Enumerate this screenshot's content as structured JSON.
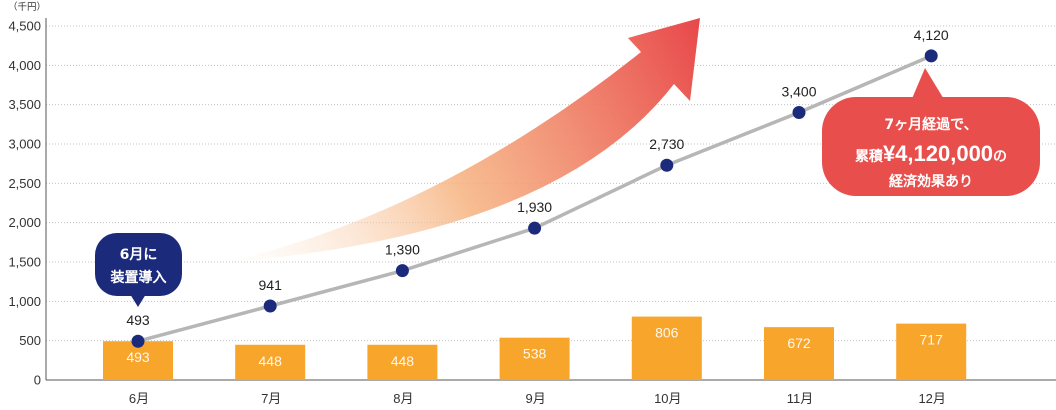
{
  "chart_data": {
    "type": "bar",
    "unit_label": "（千円）",
    "categories": [
      "6月",
      "7月",
      "8月",
      "9月",
      "10月",
      "11月",
      "12月"
    ],
    "ylim": [
      0,
      4500
    ],
    "yticks": [
      0,
      500,
      1000,
      1500,
      2000,
      2500,
      3000,
      3500,
      4000,
      4500
    ],
    "ytick_labels": [
      "0",
      "500",
      "1,000",
      "1,500",
      "2,000",
      "2,500",
      "3,000",
      "3,500",
      "4,000",
      "4,500"
    ],
    "grid": true,
    "series": [
      {
        "type": "bar",
        "values": [
          493,
          448,
          448,
          538,
          806,
          672,
          717
        ],
        "labels": [
          "493",
          "448",
          "448",
          "538",
          "806",
          "672",
          "717"
        ],
        "color": "#F8A52C",
        "label_color": "#FFFFFF"
      },
      {
        "type": "line",
        "values": [
          493,
          941,
          1390,
          1930,
          2730,
          3400,
          4120
        ],
        "labels": [
          "493",
          "941",
          "1,390",
          "1,930",
          "2,730",
          "3,400",
          "4,120"
        ],
        "color": "#B6B6B6",
        "marker_color": "#1C2A7C"
      }
    ],
    "annotations": {
      "start_callout": {
        "lines": [
          "6月に",
          "装置導入"
        ],
        "color": "#1C2A7C",
        "text_color": "#FFFFFF"
      },
      "result_callout": {
        "line1": "7ヶ月経過で、",
        "line2_prefix": "累積",
        "line2_amount": "¥4,120,000",
        "line2_suffix": "の",
        "line3": "経済効果あり",
        "color": "#E84F4C",
        "text_color": "#FFFFFF"
      },
      "trend_arrow": {
        "color_start": "#FCEBD7",
        "color_mid": "#F6B27F",
        "color_end": "#E8474A"
      }
    }
  }
}
